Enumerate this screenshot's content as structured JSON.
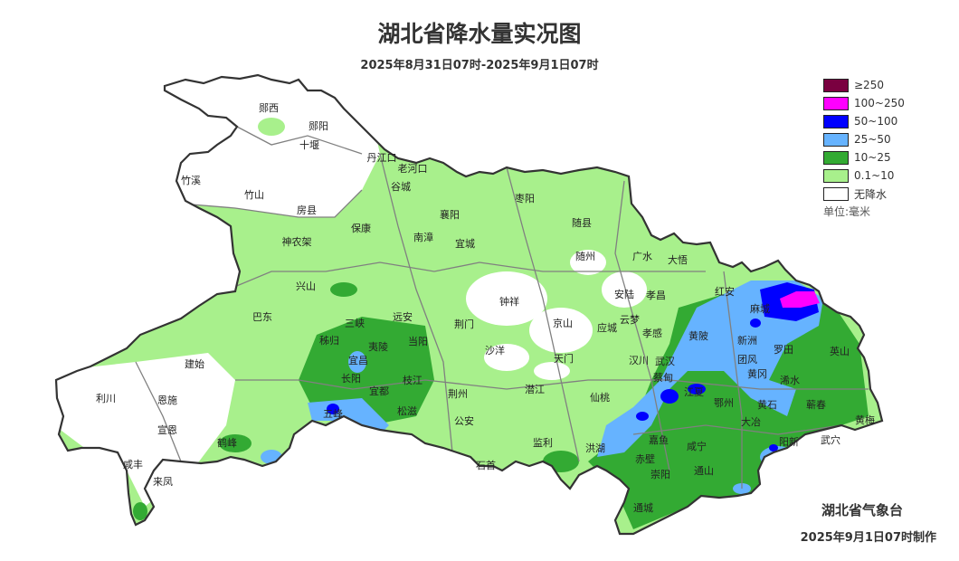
{
  "title": "湖北省降水量实况图",
  "subtitle": "2025年8月31日07时-2025年9月1日07时",
  "legend": {
    "items": [
      {
        "label": "≥250",
        "color": "#7a0040"
      },
      {
        "label": "100~250",
        "color": "#ff00ff"
      },
      {
        "label": "50~100",
        "color": "#0000ff"
      },
      {
        "label": "25~50",
        "color": "#66b3ff"
      },
      {
        "label": "10~25",
        "color": "#33aa33"
      },
      {
        "label": "0.1~10",
        "color": "#a8f08c"
      },
      {
        "label": "无降水",
        "color": "#ffffff"
      }
    ],
    "unit": "单位:毫米"
  },
  "counties": [
    "郧西",
    "郧阳",
    "十堰",
    "丹江口",
    "老河口",
    "谷城",
    "竹溪",
    "竹山",
    "房县",
    "保康",
    "神农架",
    "襄阳",
    "南漳",
    "宜城",
    "枣阳",
    "随县",
    "随州",
    "广水",
    "大悟",
    "兴山",
    "钟祥",
    "安陆",
    "孝昌",
    "红安",
    "麻城",
    "巴东",
    "三峡",
    "远安",
    "荆门",
    "京山",
    "应城",
    "云梦",
    "孝感",
    "黄陂",
    "新洲",
    "罗田",
    "英山",
    "秭归",
    "夷陵",
    "当阳",
    "宜昌",
    "沙洋",
    "天门",
    "汉川",
    "武汉",
    "团风",
    "长阳",
    "宜都",
    "枝江",
    "建始",
    "蔡甸",
    "黄冈",
    "浠水",
    "荆州",
    "潜江",
    "仙桃",
    "江夏",
    "鄂州",
    "黄石",
    "蕲春",
    "利川",
    "恩施",
    "五峰",
    "松滋",
    "公安",
    "大冶",
    "黄梅",
    "宣恩",
    "鹤峰",
    "监利",
    "洪湖",
    "嘉鱼",
    "咸宁",
    "阳新",
    "武穴",
    "赤壁",
    "石首",
    "咸丰",
    "来凤",
    "崇阳",
    "通山",
    "通城"
  ],
  "footer": {
    "issuer": "湖北省气象台",
    "made": "2025年9月1日07时制作"
  }
}
